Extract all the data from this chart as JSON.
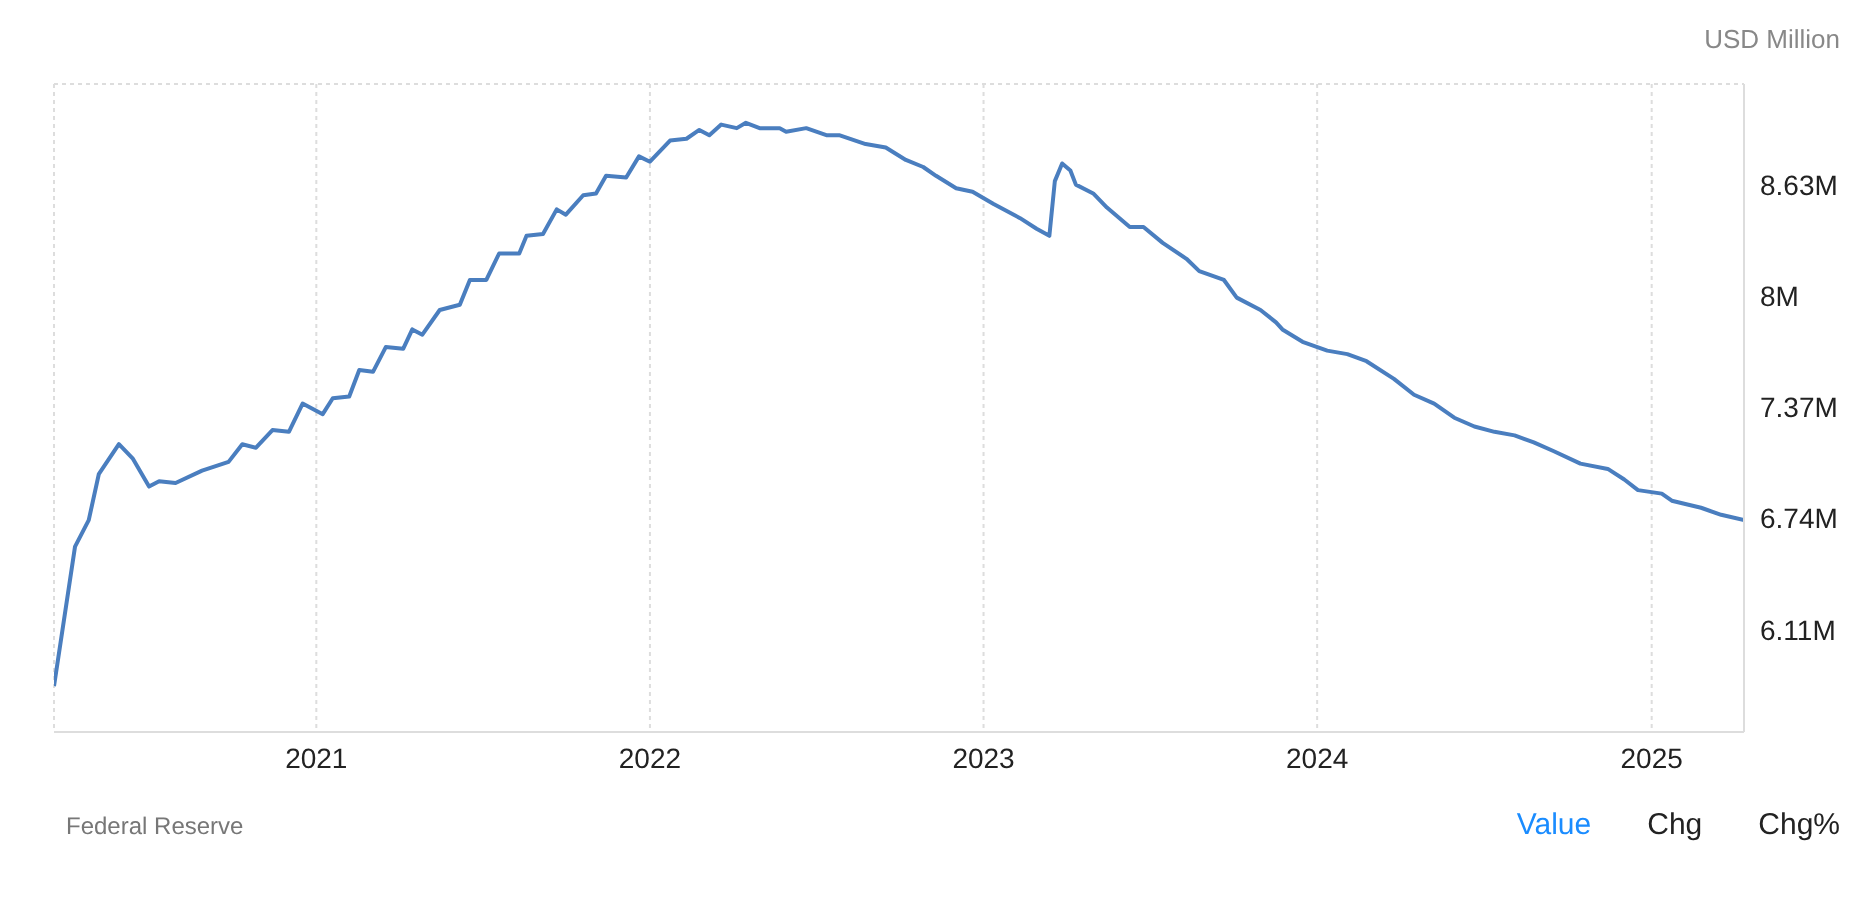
{
  "chart_data": {
    "type": "line",
    "ylabel": "USD Million",
    "annotations": [
      "Federal Reserve",
      "Value",
      "Chg",
      "Chg%"
    ],
    "x": [
      "2020-03-20",
      "2020-04-12",
      "2020-04-27",
      "2020-05-08",
      "2020-05-30",
      "2020-06-14",
      "2020-07-02",
      "2020-07-13",
      "2020-07-31",
      "2020-08-29",
      "2020-09-27",
      "2020-10-12",
      "2020-10-27",
      "2020-11-14",
      "2020-12-02",
      "2020-12-17",
      "2021-01-08",
      "2021-01-19",
      "2021-02-06",
      "2021-02-17",
      "2021-03-04",
      "2021-03-18",
      "2021-04-06",
      "2021-04-16",
      "2021-04-27",
      "2021-05-16",
      "2021-06-07",
      "2021-06-18",
      "2021-07-06",
      "2021-07-20",
      "2021-08-11",
      "2021-08-19",
      "2021-09-06",
      "2021-09-21",
      "2021-10-01",
      "2021-10-20",
      "2021-11-03",
      "2021-11-14",
      "2021-12-06",
      "2021-12-20",
      "2022-01-01",
      "2022-01-23",
      "2022-02-10",
      "2022-02-24",
      "2022-03-07",
      "2022-03-20",
      "2022-04-06",
      "2022-04-16",
      "2022-05-01",
      "2022-05-23",
      "2022-05-30",
      "2022-06-21",
      "2022-07-13",
      "2022-07-27",
      "2022-08-25",
      "2022-09-16",
      "2022-10-08",
      "2022-10-27",
      "2022-11-10",
      "2022-12-02",
      "2022-12-20",
      "2023-01-12",
      "2023-02-10",
      "2023-02-28",
      "2023-03-14",
      "2023-03-20",
      "2023-03-28",
      "2023-04-06",
      "2023-04-12",
      "2023-05-01",
      "2023-05-16",
      "2023-06-10",
      "2023-06-25",
      "2023-07-16",
      "2023-08-11",
      "2023-08-25",
      "2023-09-21",
      "2023-10-05",
      "2023-10-31",
      "2023-11-17",
      "2023-11-24",
      "2023-12-16",
      "2024-01-12",
      "2024-02-03",
      "2024-02-24",
      "2024-03-25",
      "2024-04-16",
      "2024-05-08",
      "2024-05-30",
      "2024-06-21",
      "2024-07-13",
      "2024-08-04",
      "2024-08-25",
      "2024-09-16",
      "2024-10-15",
      "2024-11-14",
      "2024-12-02",
      "2024-12-17",
      "2025-01-12",
      "2025-01-23",
      "2025-02-24",
      "2025-03-18",
      "2025-04-12"
    ],
    "series": [
      {
        "color": "#4a7ebf",
        "values": [
          5790000,
          6580000,
          6730000,
          6990000,
          7160000,
          7080000,
          6920000,
          6950000,
          6940000,
          7010000,
          7060000,
          7160000,
          7140000,
          7240000,
          7230000,
          7390000,
          7330000,
          7420000,
          7430000,
          7580000,
          7570000,
          7710000,
          7700000,
          7810000,
          7780000,
          7920000,
          7950000,
          8090000,
          8090000,
          8240000,
          8240000,
          8340000,
          8350000,
          8490000,
          8460000,
          8570000,
          8580000,
          8680000,
          8670000,
          8790000,
          8760000,
          8880000,
          8890000,
          8940000,
          8910000,
          8970000,
          8950000,
          8980000,
          8950000,
          8950000,
          8930000,
          8950000,
          8910000,
          8910000,
          8860000,
          8840000,
          8770000,
          8730000,
          8680000,
          8610000,
          8590000,
          8520000,
          8440000,
          8380000,
          8340000,
          8650000,
          8750000,
          8710000,
          8630000,
          8580000,
          8500000,
          8390000,
          8390000,
          8300000,
          8210000,
          8140000,
          8090000,
          7990000,
          7920000,
          7850000,
          7810000,
          7740000,
          7690000,
          7670000,
          7630000,
          7530000,
          7440000,
          7390000,
          7310000,
          7260000,
          7230000,
          7210000,
          7170000,
          7120000,
          7050000,
          7020000,
          6960000,
          6900000,
          6880000,
          6840000,
          6800000,
          6760000,
          6730000
        ]
      }
    ],
    "xlim": [
      "2020-03-20",
      "2025-04-12"
    ],
    "xticks": [
      "2021",
      "2022",
      "2023",
      "2024",
      "2025"
    ],
    "ylim": [
      5530000,
      9200000
    ],
    "yticks": [
      {
        "value": 6110000,
        "label": "6.11M"
      },
      {
        "value": 6740000,
        "label": "6.74M"
      },
      {
        "value": 7370000,
        "label": "7.37M"
      },
      {
        "value": 8000000,
        "label": "8M"
      },
      {
        "value": 8630000,
        "label": "8.63M"
      }
    ],
    "grid": true,
    "marker": "none",
    "line_style": "solid"
  }
}
